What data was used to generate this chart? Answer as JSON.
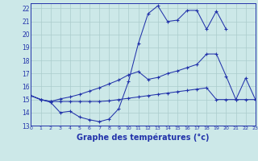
{
  "title": "Graphe des températures (°c)",
  "bg_color": "#cce8e8",
  "line_color": "#2233aa",
  "grid_color": "#aacccc",
  "xlim": [
    0,
    23
  ],
  "ylim": [
    13,
    22.4
  ],
  "xticks": [
    0,
    1,
    2,
    3,
    4,
    5,
    6,
    7,
    8,
    9,
    10,
    11,
    12,
    13,
    14,
    15,
    16,
    17,
    18,
    19,
    20,
    21,
    22,
    23
  ],
  "yticks": [
    13,
    14,
    15,
    16,
    17,
    18,
    19,
    20,
    21,
    22
  ],
  "line1_x": [
    0,
    1,
    2,
    3,
    4,
    5,
    6,
    7,
    8,
    9,
    10,
    11,
    12,
    13,
    14,
    15,
    16,
    17,
    18,
    19,
    20
  ],
  "line1_y": [
    15.3,
    15.0,
    14.8,
    14.0,
    14.1,
    13.65,
    13.45,
    13.3,
    13.5,
    14.3,
    16.4,
    19.3,
    21.6,
    22.2,
    21.0,
    21.1,
    21.85,
    21.85,
    20.4,
    21.8,
    20.4
  ],
  "line2_x": [
    0,
    1,
    2,
    3,
    4,
    5,
    6,
    7,
    8,
    9,
    10,
    11,
    12,
    13,
    14,
    15,
    16,
    17,
    18,
    19,
    20,
    21,
    22,
    23
  ],
  "line2_y": [
    15.3,
    15.0,
    14.85,
    15.05,
    15.2,
    15.4,
    15.65,
    15.9,
    16.2,
    16.5,
    16.9,
    17.15,
    16.55,
    16.7,
    17.0,
    17.2,
    17.45,
    17.7,
    18.5,
    18.5,
    16.8,
    15.0,
    16.65,
    15.0
  ],
  "line3_x": [
    0,
    1,
    2,
    3,
    4,
    5,
    6,
    7,
    8,
    9,
    10,
    11,
    12,
    13,
    14,
    15,
    16,
    17,
    18,
    19,
    20,
    21,
    22,
    23
  ],
  "line3_y": [
    15.3,
    15.0,
    14.85,
    14.85,
    14.85,
    14.85,
    14.85,
    14.85,
    14.9,
    15.0,
    15.1,
    15.2,
    15.3,
    15.4,
    15.5,
    15.6,
    15.7,
    15.8,
    15.9,
    15.0,
    15.0,
    15.0,
    15.0,
    15.0
  ]
}
